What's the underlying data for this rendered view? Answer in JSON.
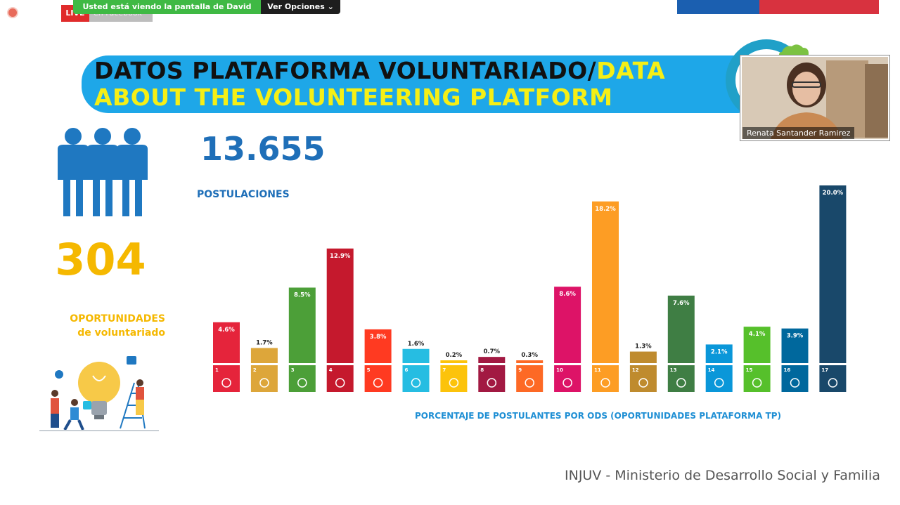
{
  "overlay": {
    "live_label": "LIVE",
    "live_sub": "en Facebook",
    "share_text": "Usted está viendo la pantalla de David Styers",
    "options_label": "Ver Opciones ⌄"
  },
  "slide": {
    "title_black": "DATOS PLATAFORMA VOLUNTARIADO/",
    "title_yellow": "DATA ABOUT THE VOLUNTEERING PLATFORM",
    "opportunities_count": "304",
    "opportunities_label_1": "OPORTUNIDADES",
    "opportunities_label_2": "de voluntariado",
    "applications_count": "13.655",
    "applications_label": "POSTULACIONES",
    "footer": "INJUV - Ministerio de Desarrollo Social y Familia"
  },
  "participant": {
    "name": "Renata Santander Ramirez"
  },
  "chart_data": {
    "type": "bar",
    "xlabel": "PORCENTAJE DE POSTULANTES POR ODS (OPORTUNIDADES PLATAFORMA TP)",
    "categories": [
      "1",
      "2",
      "3",
      "4",
      "5",
      "6",
      "7",
      "8",
      "9",
      "10",
      "11",
      "12",
      "13",
      "14",
      "15",
      "16",
      "17"
    ],
    "values": [
      4.6,
      1.7,
      8.5,
      12.9,
      3.8,
      1.6,
      0.2,
      0.7,
      0.3,
      8.6,
      18.2,
      1.3,
      7.6,
      2.1,
      4.1,
      3.9,
      20.0
    ],
    "labels": [
      "4.6%",
      "1.7%",
      "8.5%",
      "12.9%",
      "3.8%",
      "1.6%",
      "0.2%",
      "0.7%",
      "0.3%",
      "8.6%",
      "18.2%",
      "1.3%",
      "7.6%",
      "2.1%",
      "4.1%",
      "3.9%",
      "20.0%"
    ],
    "colors": [
      "#e5243b",
      "#dda63a",
      "#4c9f38",
      "#c5192d",
      "#ff3a21",
      "#26bde2",
      "#fcc30b",
      "#a21942",
      "#fd6925",
      "#dd1367",
      "#fd9d24",
      "#bf8b2e",
      "#3f7e44",
      "#0a97d9",
      "#56c02b",
      "#00689d",
      "#19486a"
    ],
    "ylim": [
      0,
      20
    ]
  }
}
